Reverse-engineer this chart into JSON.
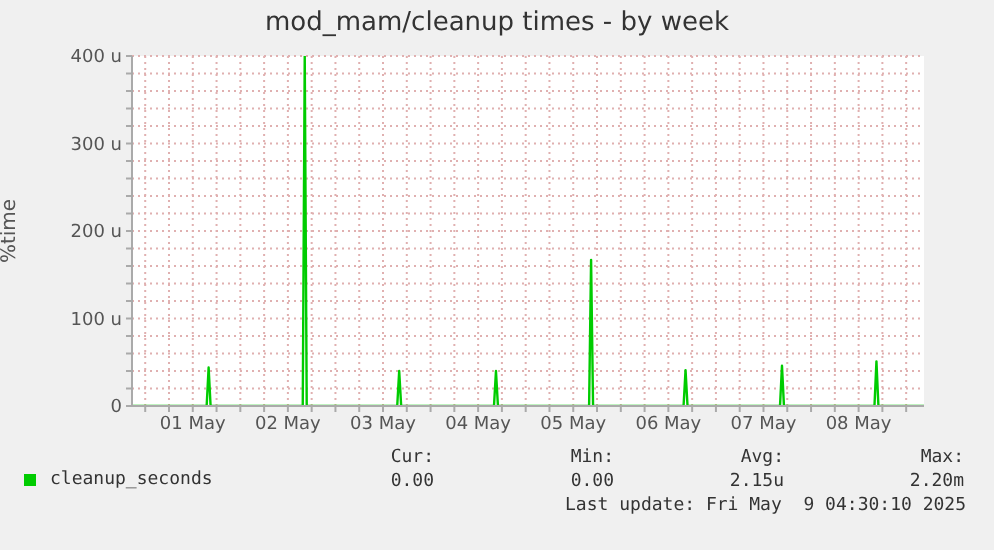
{
  "chart_data": {
    "type": "line",
    "title": "mod_mam/cleanup times - by week",
    "ylabel": "%time",
    "xlim": [
      "2025-04-30T20:40",
      "2025-05-09T04:30"
    ],
    "xticks": [
      {
        "value": "2025-05-01T00:00",
        "label": null
      },
      {
        "value": "2025-05-01T06:00",
        "label": null
      },
      {
        "value": "2025-05-01T12:00",
        "label": "01 May"
      },
      {
        "value": "2025-05-01T18:00",
        "label": null
      },
      {
        "value": "2025-05-02T00:00",
        "label": null
      },
      {
        "value": "2025-05-02T06:00",
        "label": null
      },
      {
        "value": "2025-05-02T12:00",
        "label": "02 May"
      },
      {
        "value": "2025-05-02T18:00",
        "label": null
      },
      {
        "value": "2025-05-03T00:00",
        "label": null
      },
      {
        "value": "2025-05-03T06:00",
        "label": null
      },
      {
        "value": "2025-05-03T12:00",
        "label": "03 May"
      },
      {
        "value": "2025-05-03T18:00",
        "label": null
      },
      {
        "value": "2025-05-04T00:00",
        "label": null
      },
      {
        "value": "2025-05-04T06:00",
        "label": null
      },
      {
        "value": "2025-05-04T12:00",
        "label": "04 May"
      },
      {
        "value": "2025-05-04T18:00",
        "label": null
      },
      {
        "value": "2025-05-05T00:00",
        "label": null
      },
      {
        "value": "2025-05-05T06:00",
        "label": null
      },
      {
        "value": "2025-05-05T12:00",
        "label": "05 May"
      },
      {
        "value": "2025-05-05T18:00",
        "label": null
      },
      {
        "value": "2025-05-06T00:00",
        "label": null
      },
      {
        "value": "2025-05-06T06:00",
        "label": null
      },
      {
        "value": "2025-05-06T12:00",
        "label": "06 May"
      },
      {
        "value": "2025-05-06T18:00",
        "label": null
      },
      {
        "value": "2025-05-07T00:00",
        "label": null
      },
      {
        "value": "2025-05-07T06:00",
        "label": null
      },
      {
        "value": "2025-05-07T12:00",
        "label": "07 May"
      },
      {
        "value": "2025-05-07T18:00",
        "label": null
      },
      {
        "value": "2025-05-08T00:00",
        "label": null
      },
      {
        "value": "2025-05-08T06:00",
        "label": null
      },
      {
        "value": "2025-05-08T12:00",
        "label": "08 May"
      },
      {
        "value": "2025-05-08T18:00",
        "label": null
      },
      {
        "value": "2025-05-09T00:00",
        "label": null
      }
    ],
    "ylim": [
      0,
      400
    ],
    "yticks": [
      {
        "value": 0,
        "label": "0"
      },
      {
        "value": 20,
        "label": null
      },
      {
        "value": 40,
        "label": null
      },
      {
        "value": 60,
        "label": null
      },
      {
        "value": 80,
        "label": null
      },
      {
        "value": 100,
        "label": "100 u"
      },
      {
        "value": 120,
        "label": null
      },
      {
        "value": 140,
        "label": null
      },
      {
        "value": 160,
        "label": null
      },
      {
        "value": 180,
        "label": null
      },
      {
        "value": 200,
        "label": "200 u"
      },
      {
        "value": 220,
        "label": null
      },
      {
        "value": 240,
        "label": null
      },
      {
        "value": 260,
        "label": null
      },
      {
        "value": 280,
        "label": null
      },
      {
        "value": 300,
        "label": "300 u"
      },
      {
        "value": 320,
        "label": null
      },
      {
        "value": 340,
        "label": null
      },
      {
        "value": 360,
        "label": null
      },
      {
        "value": 380,
        "label": null
      },
      {
        "value": 400,
        "label": "400 u"
      }
    ],
    "grid": true,
    "legend": "bottom",
    "marker": "none",
    "line_style": "solid",
    "series": [
      {
        "name": "cleanup_seconds",
        "color": "#00cc00",
        "x": [
          "2025-04-30T20:40",
          "2025-05-01T15:30",
          "2025-05-01T16:00",
          "2025-05-01T16:30",
          "2025-05-02T15:45",
          "2025-05-02T16:15",
          "2025-05-02T16:45",
          "2025-05-03T15:35",
          "2025-05-03T16:05",
          "2025-05-03T16:35",
          "2025-05-04T16:00",
          "2025-05-04T16:30",
          "2025-05-04T17:00",
          "2025-05-05T16:00",
          "2025-05-05T16:30",
          "2025-05-05T17:00",
          "2025-05-06T15:50",
          "2025-05-06T16:20",
          "2025-05-06T16:50",
          "2025-05-07T16:10",
          "2025-05-07T16:40",
          "2025-05-07T17:10",
          "2025-05-08T16:00",
          "2025-05-08T16:30",
          "2025-05-08T17:00",
          "2025-05-09T04:30"
        ],
        "values": [
          0,
          0,
          44,
          0,
          0,
          400,
          0,
          0,
          40,
          0,
          0,
          40,
          0,
          0,
          167,
          0,
          0,
          41,
          0,
          0,
          46,
          0,
          0,
          51,
          0,
          0
        ]
      }
    ],
    "annotations": [
      "Cur:",
      "Min:",
      "Avg:",
      "Max:",
      "0.00",
      "0.00",
      "2.15u",
      "2.20m",
      "Last update: Fri May  9 04:30:10 2025"
    ]
  }
}
